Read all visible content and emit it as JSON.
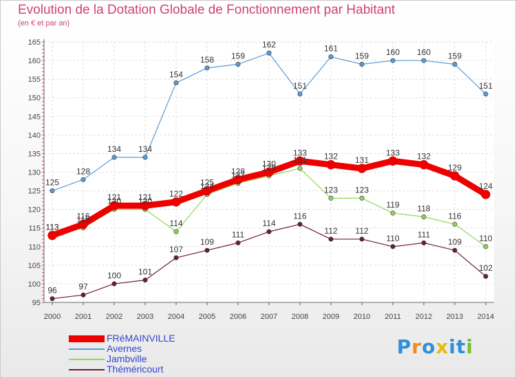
{
  "chart_data": {
    "type": "line",
    "title": "Evolution de la Dotation Globale de Fonctionnement par Habitant",
    "subtitle": "(en € et par an)",
    "xlabel": "",
    "ylabel": "",
    "x": [
      2000,
      2001,
      2002,
      2003,
      2004,
      2005,
      2006,
      2007,
      2008,
      2009,
      2010,
      2011,
      2012,
      2013,
      2014
    ],
    "ylim": [
      95,
      165
    ],
    "yticks": [
      95,
      100,
      105,
      110,
      115,
      120,
      125,
      130,
      135,
      140,
      145,
      150,
      155,
      160,
      165
    ],
    "grid": true,
    "legend_position": "bottom-left",
    "series": [
      {
        "name": "Thémericourt",
        "color": "#6b1f2a",
        "values": [
          96,
          97,
          100,
          101,
          107,
          109,
          111,
          114,
          116,
          112,
          112,
          110,
          111,
          109,
          102
        ]
      },
      {
        "name": "Jambville",
        "color": "#8fd65a",
        "values": [
          113,
          115,
          120,
          120,
          114,
          124,
          127,
          129,
          131,
          123,
          123,
          119,
          118,
          116,
          110
        ]
      },
      {
        "name": "Avernes",
        "color": "#5b9bd5",
        "values": [
          125,
          128,
          134,
          134,
          154,
          158,
          159,
          162,
          151,
          161,
          159,
          160,
          160,
          159,
          151
        ]
      },
      {
        "name": "FRéMAINVILLE",
        "color": "#ee0000",
        "values": [
          113,
          116,
          121,
          121,
          122,
          125,
          128,
          130,
          133,
          132,
          131,
          133,
          132,
          129,
          124
        ]
      }
    ]
  },
  "legend": {
    "items": [
      {
        "label": "FRéMAINVILLE",
        "color": "#ee0000"
      },
      {
        "label": "Avernes",
        "color": "#5b9bd5"
      },
      {
        "label": "Jambville",
        "color": "#8fd65a"
      },
      {
        "label": "Théméricourt",
        "color": "#6b1f2a"
      }
    ]
  },
  "logo": {
    "letters": [
      "P",
      "r",
      "o",
      "x",
      "i",
      "t",
      "i"
    ],
    "colors": [
      "#2f8fd8",
      "#f28a1e",
      "#2f8fd8",
      "#e8b818",
      "#2f8fd8",
      "#2f8fd8",
      "#7bbd2a"
    ]
  }
}
